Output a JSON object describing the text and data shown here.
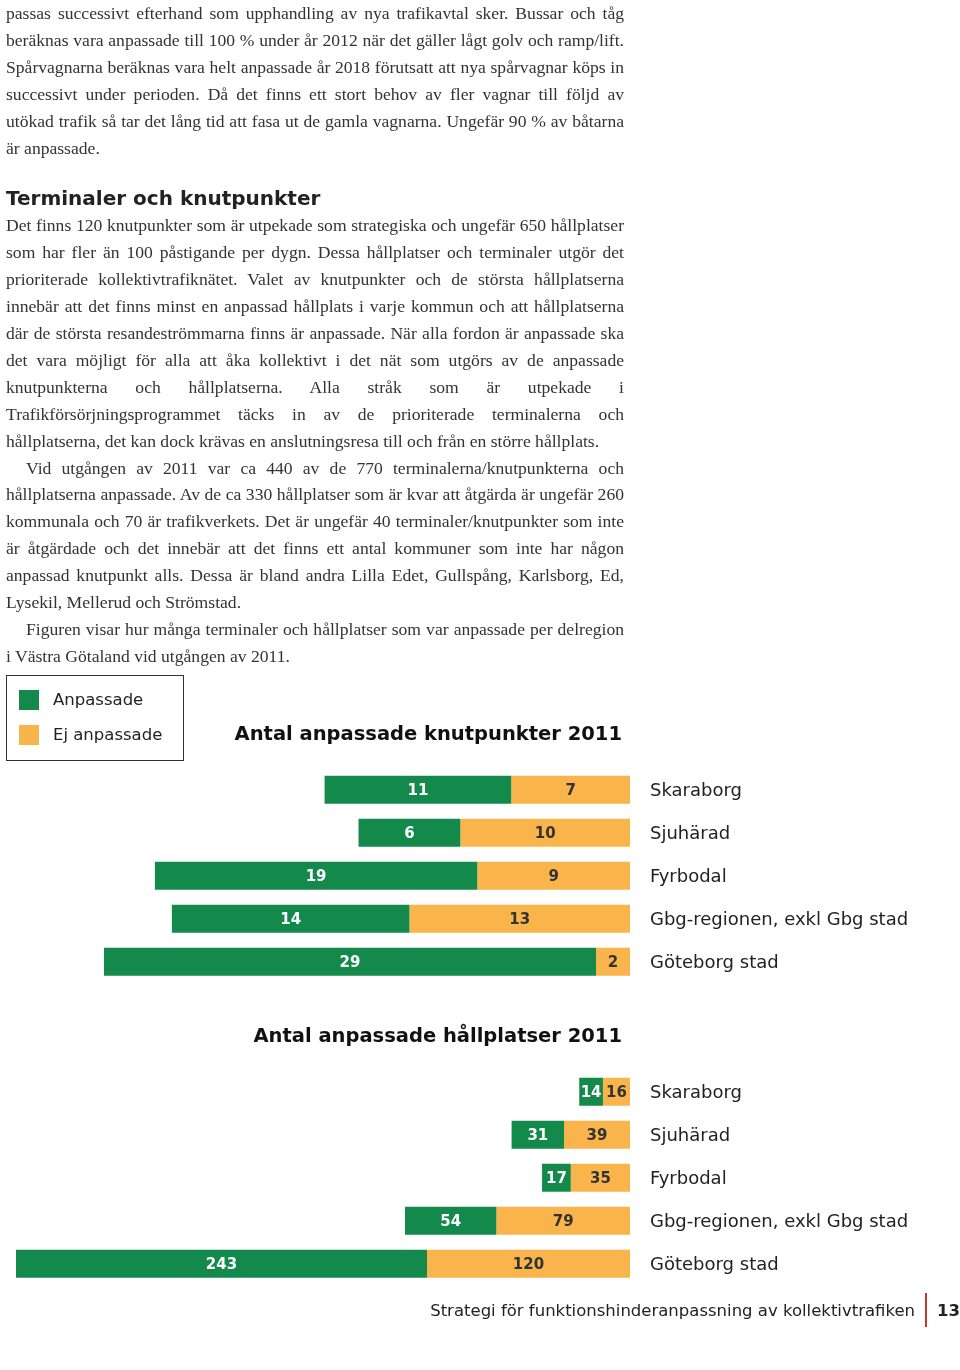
{
  "chart_data": [
    {
      "type": "bar",
      "orientation": "horizontal",
      "stacked": true,
      "data_labels": true,
      "legend": "top left",
      "title": "Antal anpassade knutpunkter 2011",
      "annotations": [
        "passas successivt efterhand som upphandling av nya trafikavtal sker. Bussar och tåg beräknas vara anpassade till 100 % under år 2012 när det gäller lågt golv och ramp/lift. Spårvagnarna beräknas vara helt anpassade år 2018 förutsatt att nya spårvagnar köps in successivt under perioden. Då det finns ett stort behov av fler vagnar till följd av utökad trafik så tar det lång tid att fasa ut de gamla vagnarna. Ungefär 90 % av båtarna är anpassade.",
        "Terminaler och knutpunkter",
        "Det finns 120 knutpunkter som är utpekade som strategiska och ungefär 650 hållplatser som har fler än 100 påstigande per dygn. Dessa hållplatser och terminaler utgör det prioriterade kollektivtrafiknätet. Valet av knutpunkter och de största hållplatserna innebär att det finns minst en anpassad hållplats i varje kommun och att hållplatserna där de största resandeströmmarna finns är anpassade. När alla fordon är anpassade ska det vara möjligt för alla att åka kollektivt i det nät som utgörs av de anpassade knutpunkterna och hållplatserna. Alla stråk som är utpekade i Trafikförsörjningsprogrammet täcks in av de prioriterade terminalerna och hållplatserna, det kan dock krävas en anslutningsresa till och från en större hållplats.",
        "Vid utgången av 2011 var ca 440 av de 770 terminalerna/knutpunkterna och hållplatserna anpassade. Av de ca 330 hållplatser som är kvar att åtgärda är ungefär 260 kommunala och 70 är trafikverkets. Det är ungefär 40 terminaler/knutpunkter som inte är åtgärdade och det innebär att det finns ett antal kommuner som inte har någon anpassad knutpunkt alls. Dessa är bland andra Lilla Edet, Gullspång, Karlsborg, Ed, Lysekil, Mellerud och Strömstad.",
        "Figuren visar hur många terminaler och hållplatser som var anpassade per delregion i Västra Götaland vid utgången av 2011."
      ],
      "categories": [
        "Skaraborg",
        "Sjuhärad",
        "Fyrbodal",
        "Gbg-regionen, exkl Gbg stad",
        "Göteborg stad"
      ],
      "series": [
        {
          "name": "Ej anpassade",
          "color": "#f9b44c",
          "values": [
            7,
            10,
            9,
            13,
            2
          ]
        },
        {
          "name": "Anpassade",
          "color": "#138a4b",
          "values": [
            11,
            6,
            19,
            14,
            29
          ]
        }
      ]
    },
    {
      "type": "bar",
      "orientation": "horizontal",
      "stacked": true,
      "data_labels": true,
      "title": "Antal anpassade hållplatser 2011",
      "annotations": [
        "Strategi för funktionshinderanpassning av kollektivtrafiken",
        "13"
      ],
      "categories": [
        "Skaraborg",
        "Sjuhärad",
        "Fyrbodal",
        "Gbg-regionen, exkl Gbg stad",
        "Göteborg stad"
      ],
      "series": [
        {
          "color": "#f9b44c",
          "values": [
            16,
            39,
            35,
            79,
            120
          ]
        },
        {
          "color": "#138a4b",
          "values": [
            14,
            31,
            17,
            54,
            243
          ]
        }
      ]
    }
  ]
}
